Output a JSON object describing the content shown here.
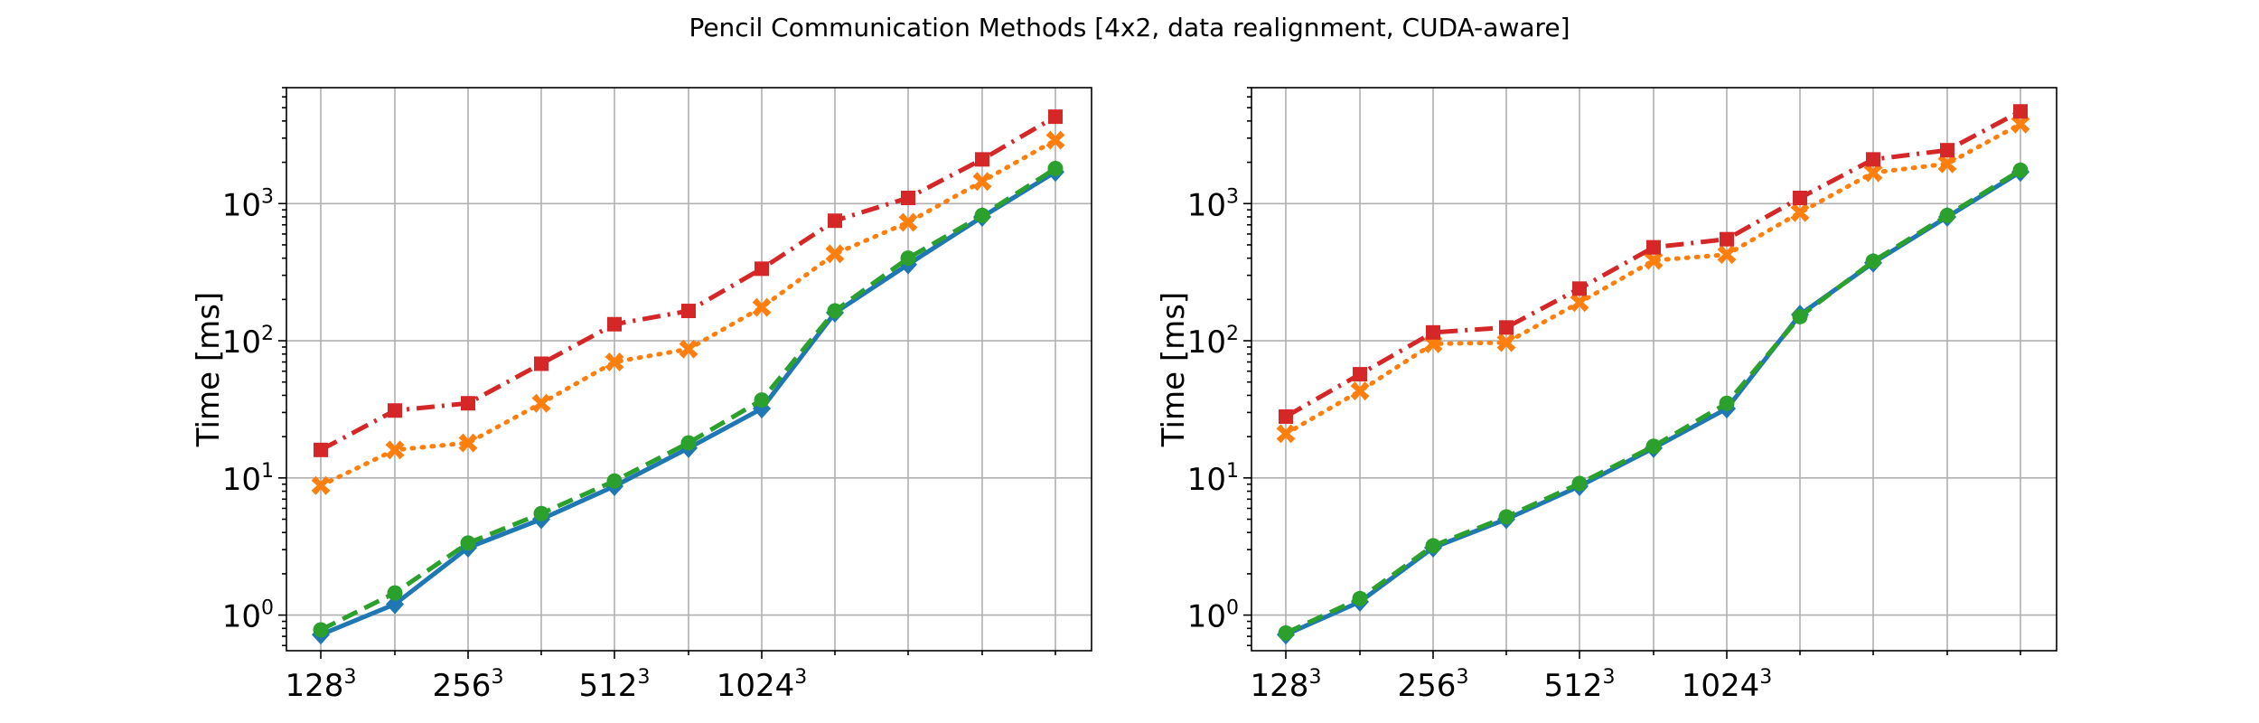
{
  "figure": {
    "suptitle": "Pencil Communication Methods [4x2, data realignment, CUDA-aware]"
  },
  "chart_data": [
    {
      "type": "line",
      "title": "",
      "xlabel": "",
      "ylabel": "Time [ms]",
      "yscale": "log",
      "ylim": [
        0.55,
        7000
      ],
      "x_tick_labels": [
        {
          "base": "128",
          "exp": "3"
        },
        {
          "base": "256",
          "exp": "3"
        },
        {
          "base": "512",
          "exp": "3"
        },
        {
          "base": "1024",
          "exp": "3"
        }
      ],
      "y_tick_labels": [
        {
          "base": "10",
          "exp": "0"
        },
        {
          "base": "10",
          "exp": "1"
        },
        {
          "base": "10",
          "exp": "2"
        },
        {
          "base": "10",
          "exp": "3"
        }
      ],
      "grid": true,
      "series": [
        {
          "color": "#1f77b4",
          "linestyle": "solid",
          "marker": "diamond",
          "values": [
            0.72,
            1.2,
            3.1,
            5.0,
            8.7,
            16.5,
            32,
            160,
            360,
            800,
            1700
          ]
        },
        {
          "color": "#ff7f0e",
          "linestyle": "dotted",
          "marker": "x",
          "values": [
            8.8,
            16,
            18,
            35,
            70,
            87,
            175,
            430,
            730,
            1450,
            2900
          ]
        },
        {
          "color": "#2ca02c",
          "linestyle": "dashed",
          "marker": "circle",
          "values": [
            0.78,
            1.45,
            3.35,
            5.5,
            9.5,
            18,
            37,
            165,
            400,
            820,
            1800
          ]
        },
        {
          "color": "#d62728",
          "linestyle": "dashdot",
          "marker": "square",
          "values": [
            16,
            31,
            35,
            68,
            132,
            165,
            335,
            750,
            1100,
            2100,
            4300
          ]
        }
      ]
    },
    {
      "type": "line",
      "title": "",
      "xlabel": "",
      "ylabel": "Time [ms]",
      "yscale": "log",
      "ylim": [
        0.55,
        7000
      ],
      "x_tick_labels": [
        {
          "base": "128",
          "exp": "3"
        },
        {
          "base": "256",
          "exp": "3"
        },
        {
          "base": "512",
          "exp": "3"
        },
        {
          "base": "1024",
          "exp": "3"
        }
      ],
      "y_tick_labels": [
        {
          "base": "10",
          "exp": "0"
        },
        {
          "base": "10",
          "exp": "1"
        },
        {
          "base": "10",
          "exp": "2"
        },
        {
          "base": "10",
          "exp": "3"
        }
      ],
      "grid": true,
      "series": [
        {
          "color": "#1f77b4",
          "linestyle": "solid",
          "marker": "diamond",
          "values": [
            0.72,
            1.25,
            3.1,
            5.0,
            8.7,
            16.5,
            32,
            155,
            370,
            800,
            1700
          ]
        },
        {
          "color": "#ff7f0e",
          "linestyle": "dotted",
          "marker": "x",
          "values": [
            21,
            43,
            95,
            97,
            190,
            385,
            425,
            860,
            1680,
            1950,
            3800
          ]
        },
        {
          "color": "#2ca02c",
          "linestyle": "dashed",
          "marker": "circle",
          "values": [
            0.74,
            1.32,
            3.2,
            5.2,
            9.1,
            17,
            35,
            150,
            380,
            820,
            1750
          ]
        },
        {
          "color": "#d62728",
          "linestyle": "dashdot",
          "marker": "square",
          "values": [
            28,
            57,
            115,
            125,
            240,
            480,
            550,
            1100,
            2100,
            2450,
            4700
          ]
        }
      ]
    }
  ]
}
